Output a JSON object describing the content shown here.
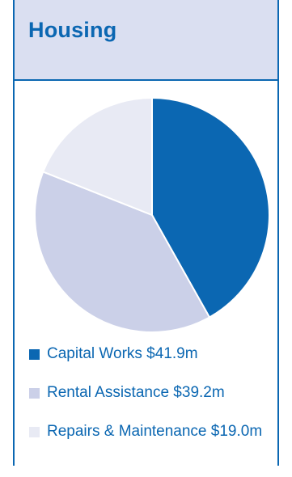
{
  "panel": {
    "title": "Housing"
  },
  "colors": {
    "accent": "#0b67b2",
    "header_bg": "#dadff1",
    "border": "#0b67b2"
  },
  "chart_data": {
    "type": "pie",
    "title": "Housing",
    "categories": [
      "Capital Works",
      "Rental Assistance",
      "Repairs & Maintenance"
    ],
    "values": [
      41.9,
      39.2,
      19.0
    ],
    "unit": "$m",
    "colors": [
      "#0b67b2",
      "#cbd0e8",
      "#e8eaf4"
    ],
    "legend_position": "bottom",
    "legend": [
      "Capital Works $41.9m",
      "Rental Assistance $39.2m",
      "Repairs & Maintenance $19.0m"
    ]
  }
}
